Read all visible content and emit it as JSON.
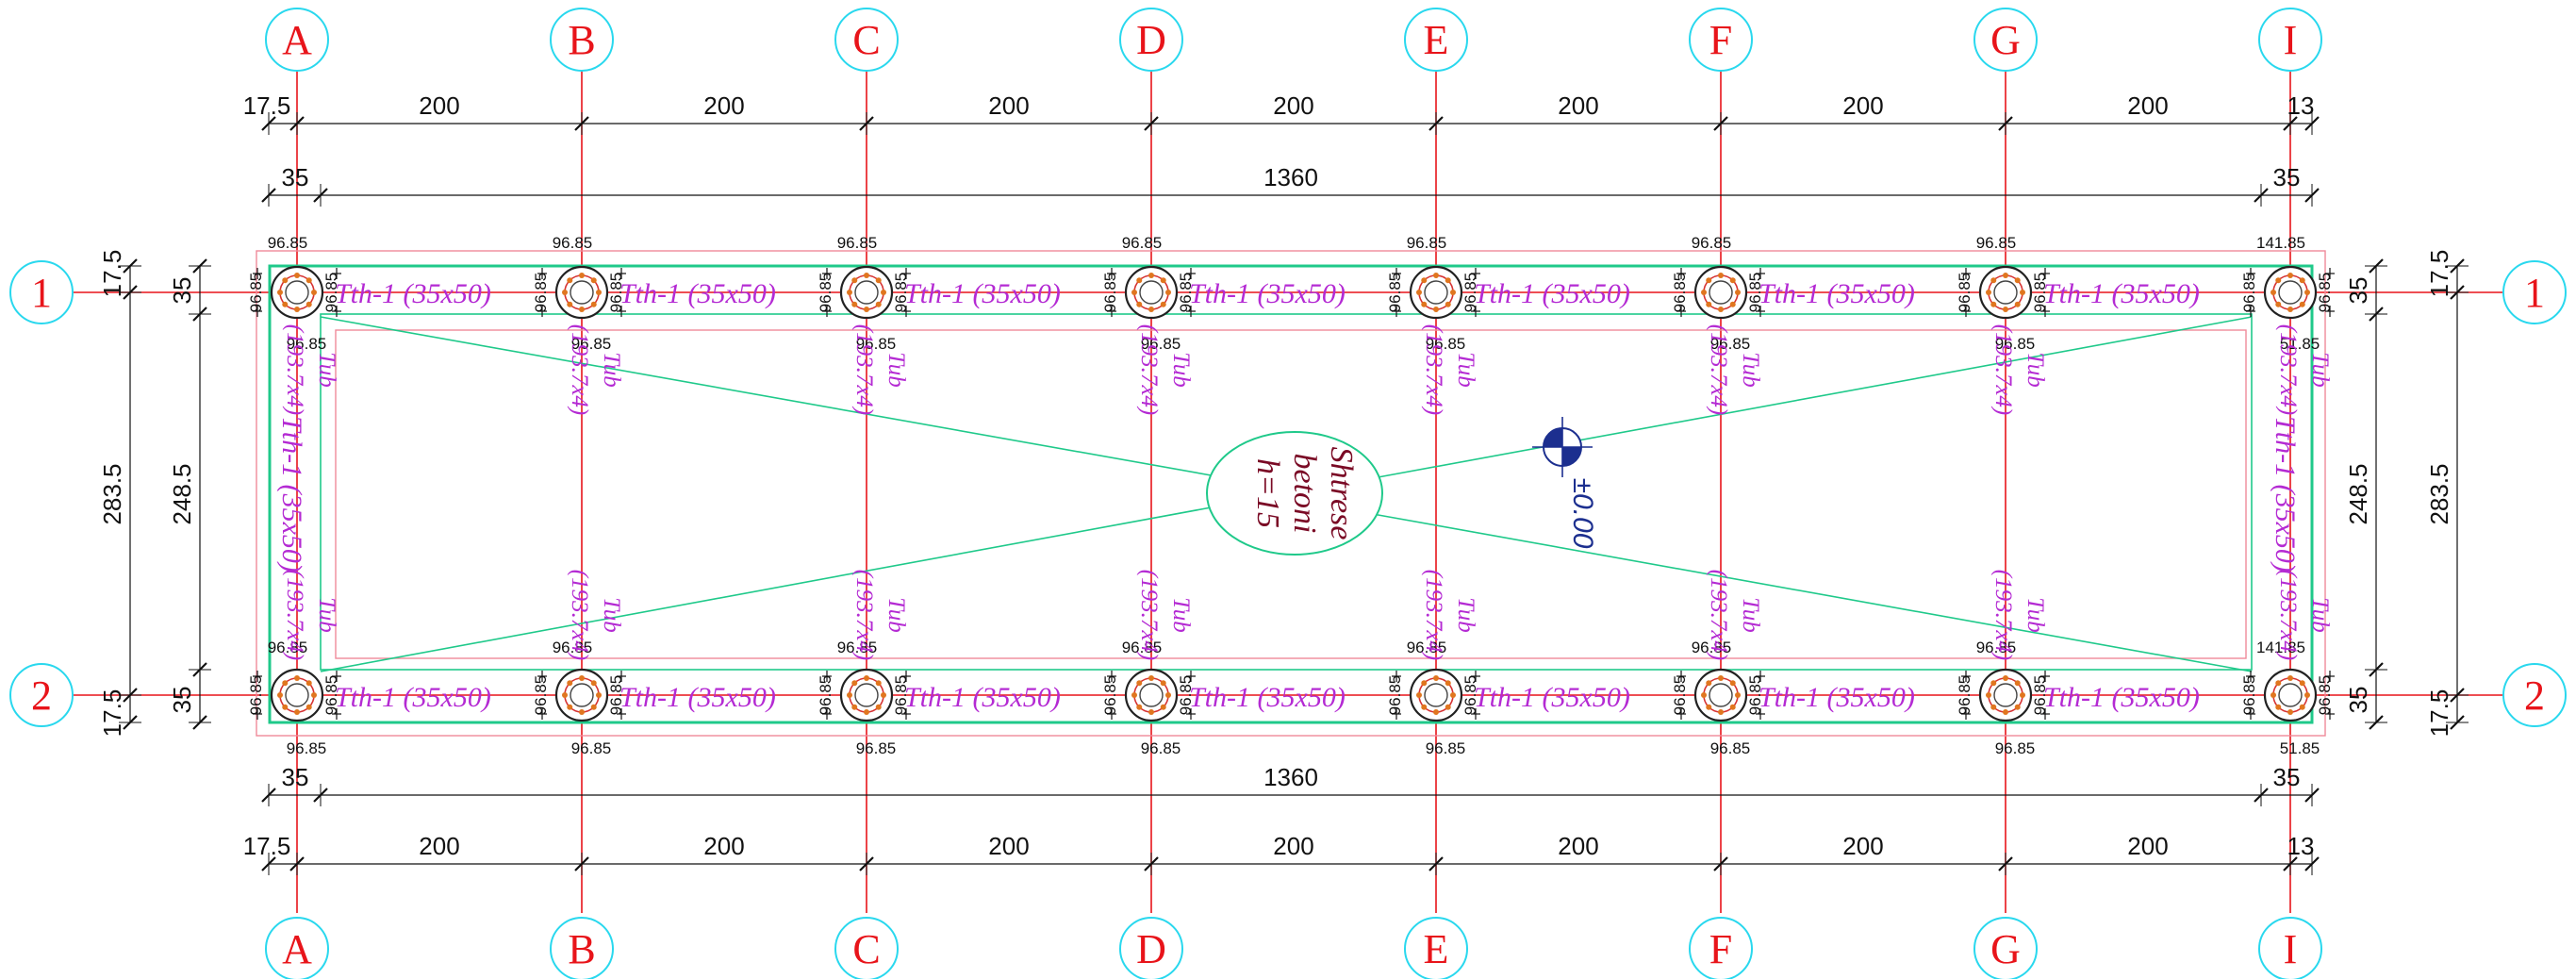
{
  "grid": {
    "columns": [
      "A",
      "B",
      "C",
      "D",
      "E",
      "F",
      "G",
      "I"
    ],
    "rows": [
      "1",
      "2"
    ],
    "colors": {
      "bubble": "#29d8ee",
      "axis_label": "#e8141a",
      "gridline": "#e8141a"
    }
  },
  "dimensions": {
    "top_chain": [
      "17.5",
      "200",
      "200",
      "200",
      "200",
      "200",
      "200",
      "200",
      "13"
    ],
    "bottom_chain": [
      "17.5",
      "200",
      "200",
      "200",
      "200",
      "200",
      "200",
      "200",
      "13"
    ],
    "top_overall": [
      "35",
      "1360",
      "35"
    ],
    "bottom_overall": [
      "35",
      "1360",
      "35"
    ],
    "left_outer": [
      "17.5",
      "283.5",
      "17.5"
    ],
    "left_inner": [
      "35",
      "248.5",
      "35"
    ],
    "right_outer": [
      "17.5",
      "283.5",
      "17.5"
    ],
    "right_inner": [
      "35",
      "248.5",
      "35"
    ]
  },
  "pile_levels": {
    "standard": "96.85",
    "top_right_top": "141.85",
    "top_right_bottom": "51.85",
    "bottom_right_top": "141.85",
    "bottom_right_bottom": "51.85"
  },
  "beams": {
    "horizontal_label": "Tth-1 (35x50)",
    "vertical_left": "Tth-1 (35x50)",
    "vertical_right": "Tth-1 (35x50)",
    "color": "#b42ad3"
  },
  "pipes": {
    "label_top": "Tub",
    "label_bottom": "(193.7x4)"
  },
  "slab": {
    "line1": "Shtrese",
    "line2": "betoni",
    "line3": "h=15",
    "color": "#7a0a25"
  },
  "level_mark": {
    "text": "±0.00",
    "color": "#1c2f8f"
  },
  "colors": {
    "beam_outline": "#1fc98a",
    "slab_outline": "#f08a9a",
    "dimension": "#111111"
  }
}
